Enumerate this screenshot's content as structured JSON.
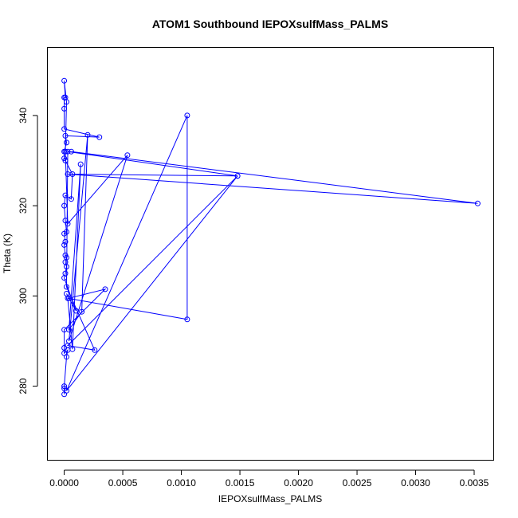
{
  "chart_data": {
    "type": "line",
    "title": "ATOM1 Southbound IEPOXsulfMass_PALMS",
    "xlabel": "IEPOXsulfMass_PALMS",
    "ylabel": "Theta (K)",
    "xlim": [
      -0.00014,
      0.00367
    ],
    "ylim": [
      263.5,
      355
    ],
    "xticks": [
      0,
      0.0005,
      0.001,
      0.0015,
      0.002,
      0.0025,
      0.003,
      0.0035
    ],
    "xtick_labels": [
      "0.0000",
      "0.0005",
      "0.0010",
      "0.0015",
      "0.0020",
      "0.0025",
      "0.0030",
      "0.0035"
    ],
    "yticks": [
      280,
      300,
      320,
      340
    ],
    "ytick_labels": [
      "280",
      "300",
      "320",
      "340"
    ],
    "grid": false,
    "color": "#0000ff",
    "series": [
      {
        "points": [
          [
            0,
            278.2
          ],
          [
            0,
            279.5
          ],
          [
            0,
            280
          ],
          [
            2e-05,
            286.5
          ],
          [
            3e-05,
            288
          ],
          [
            0,
            287.3
          ],
          [
            0,
            288.5
          ],
          [
            0,
            292.5
          ],
          [
            0.00035,
            301.5
          ],
          [
            4e-05,
            299.5
          ],
          [
            2e-05,
            300.5
          ],
          [
            0.0001,
            296.7
          ],
          [
            0,
            304
          ],
          [
            1e-05,
            305
          ],
          [
            2e-05,
            306.5
          ],
          [
            1e-05,
            307.5
          ],
          [
            2e-05,
            308.5
          ],
          [
            1e-05,
            309
          ],
          [
            0,
            311.3
          ],
          [
            1e-05,
            312
          ],
          [
            0,
            313.8
          ],
          [
            2e-05,
            314.2
          ],
          [
            1e-05,
            316.7
          ],
          [
            0,
            320
          ],
          [
            1e-05,
            322.3
          ],
          [
            6e-05,
            321.5
          ],
          [
            7e-05,
            327
          ],
          [
            1e-05,
            330
          ],
          [
            0,
            330.5
          ],
          [
            0,
            332
          ],
          [
            2e-05,
            334
          ],
          [
            1e-05,
            335.5
          ],
          [
            0.0003,
            335.2
          ],
          [
            0,
            337
          ],
          [
            0,
            341.5
          ],
          [
            0,
            344
          ],
          [
            1e-05,
            344
          ],
          [
            0,
            347.7
          ],
          [
            2e-05,
            343
          ],
          [
            1e-05,
            332
          ],
          [
            3e-05,
            316
          ],
          [
            0.00054,
            331.2
          ],
          [
            4e-05,
            290
          ],
          [
            0.0002,
            335.7
          ],
          [
            0.00015,
            296.5
          ],
          [
            4e-05,
            292.5
          ],
          [
            0.00014,
            329.2
          ],
          [
            7e-05,
            288.2
          ],
          [
            3e-05,
            299.5
          ],
          [
            0.00105,
            294.8
          ],
          [
            0.00105,
            340
          ],
          [
            2e-05,
            279
          ],
          [
            0.00148,
            326.6
          ],
          [
            3e-05,
            289
          ],
          [
            0.00026,
            288
          ],
          [
            2e-05,
            302
          ],
          [
            3e-05,
            332
          ],
          [
            0.00148,
            326.6
          ],
          [
            3e-05,
            327
          ],
          [
            0.00353,
            320.5
          ],
          [
            6e-05,
            332
          ]
        ]
      }
    ]
  }
}
